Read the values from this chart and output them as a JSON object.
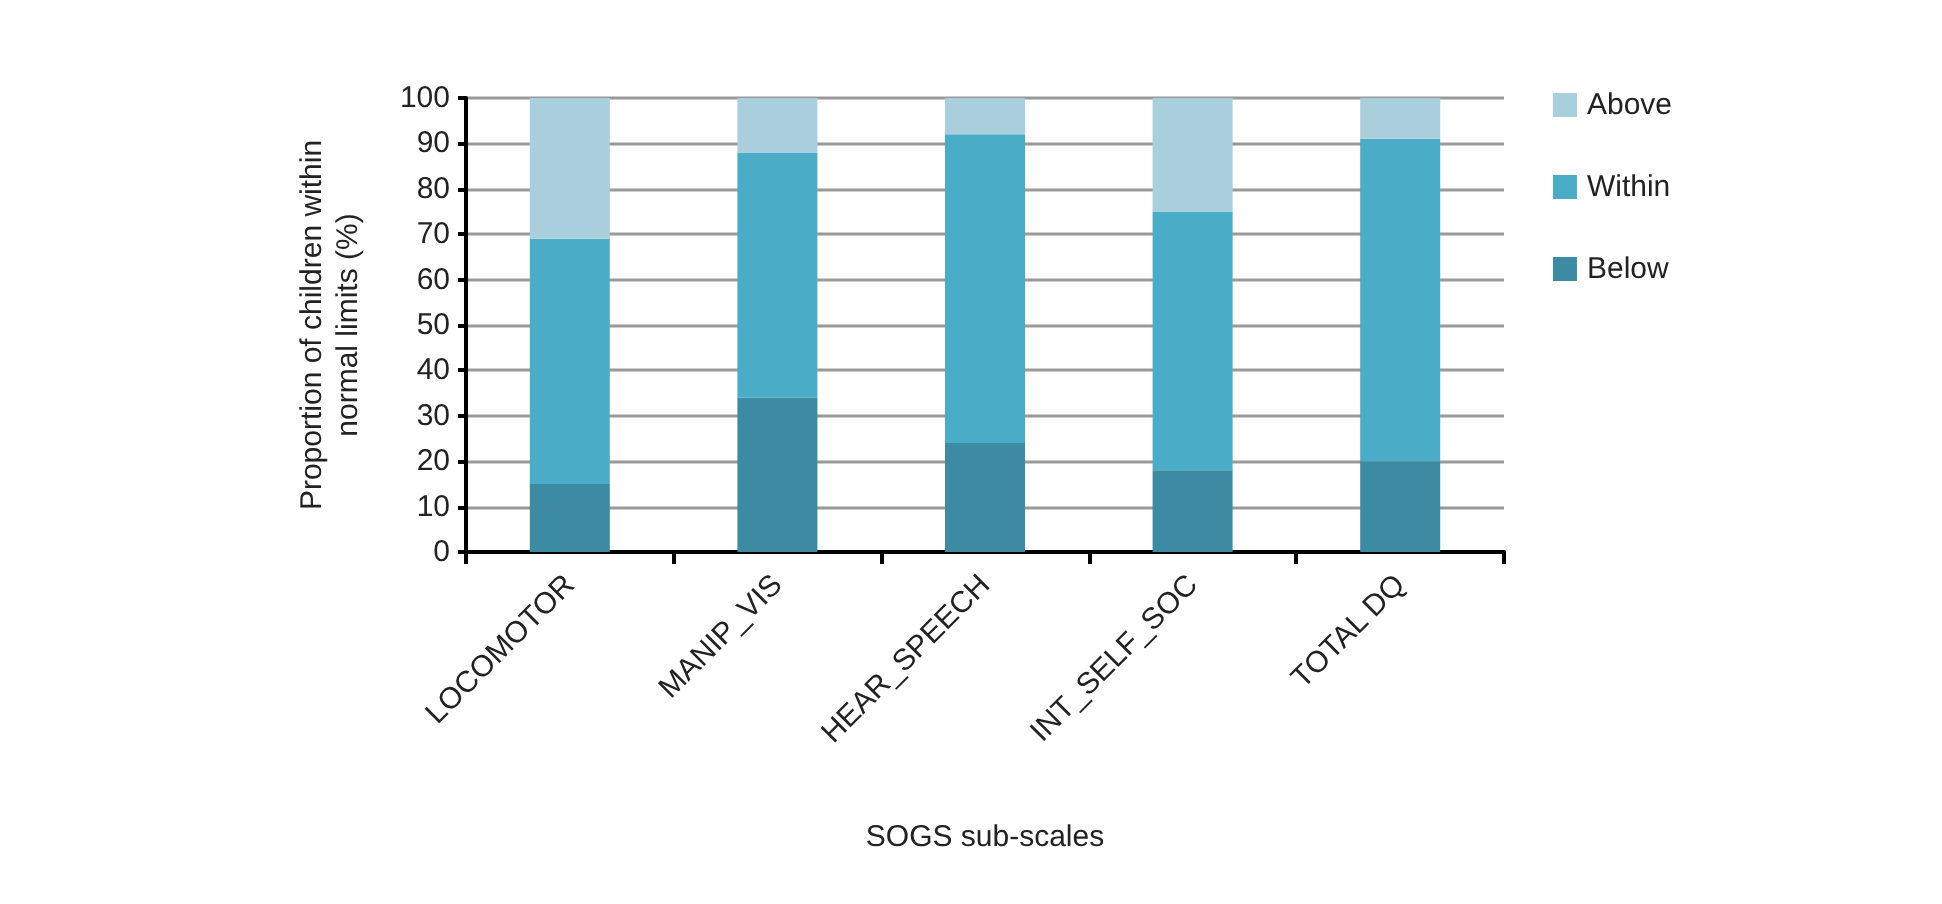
{
  "chart_data": {
    "type": "bar",
    "stacked": true,
    "xlabel": "SOGS sub-scales",
    "ylabel": "Proportion of children within\nnormal limits (%)",
    "categories": [
      "LOCOMOTOR",
      "MANIP_VIS",
      "HEAR_SPEECH",
      "INT_SELF_SOC",
      "TOTAL DQ"
    ],
    "series": [
      {
        "name": "Below",
        "color": "#3d8ba2",
        "values": [
          15,
          34,
          24,
          18,
          20
        ]
      },
      {
        "name": "Within",
        "color": "#4aacc6",
        "values": [
          54,
          54,
          68,
          57,
          71
        ]
      },
      {
        "name": "Above",
        "color": "#a9cfdc",
        "values": [
          31,
          12,
          8,
          25,
          9
        ]
      }
    ],
    "ylim": [
      0,
      100
    ],
    "yticks": [
      0,
      10,
      20,
      30,
      40,
      50,
      60,
      70,
      80,
      90,
      100
    ],
    "grid": "y",
    "legend": "right"
  }
}
